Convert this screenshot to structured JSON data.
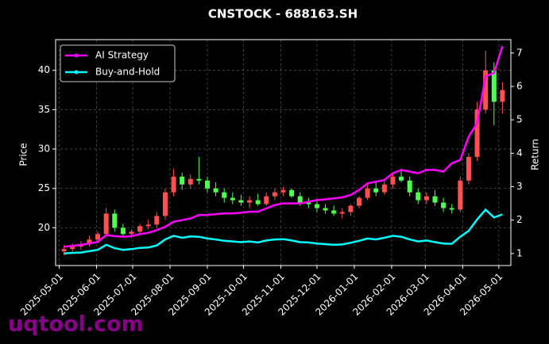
{
  "chart_data": {
    "type": "candlestick",
    "title": "CNSTOCK - 688163.SH",
    "ylabel": "Price",
    "y2label": "Return",
    "watermark": "uqtool.com",
    "x": [
      "2025-05-05",
      "2025-05-12",
      "2025-05-19",
      "2025-05-26",
      "2025-06-02",
      "2025-06-09",
      "2025-06-16",
      "2025-06-23",
      "2025-06-30",
      "2025-07-07",
      "2025-07-14",
      "2025-07-21",
      "2025-07-28",
      "2025-08-04",
      "2025-08-11",
      "2025-08-18",
      "2025-08-25",
      "2025-09-01",
      "2025-09-08",
      "2025-09-15",
      "2025-09-22",
      "2025-09-29",
      "2025-10-06",
      "2025-10-13",
      "2025-10-20",
      "2025-10-27",
      "2025-11-03",
      "2025-11-10",
      "2025-11-17",
      "2025-11-24",
      "2025-12-01",
      "2025-12-08",
      "2025-12-15",
      "2025-12-22",
      "2025-12-29",
      "2026-01-05",
      "2026-01-12",
      "2026-01-19",
      "2026-01-26",
      "2026-02-02",
      "2026-02-09",
      "2026-02-16",
      "2026-02-23",
      "2026-03-02",
      "2026-03-09",
      "2026-03-16",
      "2026-03-23",
      "2026-03-30",
      "2026-04-06",
      "2026-04-13",
      "2026-04-20",
      "2026-04-27",
      "2026-05-04"
    ],
    "open": [
      17.0,
      17.3,
      17.6,
      17.9,
      18.5,
      19.2,
      21.8,
      20.0,
      19.2,
      19.5,
      20.2,
      20.4,
      21.5,
      24.5,
      26.5,
      25.5,
      26.2,
      26.0,
      25.0,
      24.5,
      23.8,
      23.5,
      23.2,
      23.5,
      23.0,
      24.0,
      24.5,
      24.8,
      24.0,
      23.2,
      23.0,
      22.5,
      22.2,
      21.8,
      22.0,
      22.8,
      23.8,
      25.0,
      24.5,
      25.5,
      26.5,
      26.0,
      24.5,
      23.5,
      24.0,
      23.2,
      22.5,
      22.3,
      26.0,
      29.0,
      35.0,
      40.0,
      36.0
    ],
    "high": [
      17.8,
      18.0,
      18.3,
      19.0,
      19.5,
      22.5,
      22.3,
      20.5,
      19.8,
      20.5,
      21.0,
      22.0,
      25.0,
      27.5,
      27.0,
      26.8,
      29.0,
      26.5,
      25.8,
      25.0,
      24.5,
      24.2,
      24.0,
      24.3,
      24.5,
      25.0,
      25.2,
      25.0,
      24.5,
      23.8,
      23.5,
      23.0,
      22.8,
      22.5,
      23.0,
      24.0,
      25.5,
      25.8,
      26.0,
      27.0,
      27.5,
      26.5,
      25.0,
      24.5,
      24.8,
      23.8,
      23.0,
      26.5,
      29.5,
      36.0,
      42.5,
      41.0,
      38.5
    ],
    "low": [
      16.5,
      17.0,
      17.2,
      17.6,
      18.0,
      19.0,
      19.5,
      18.8,
      18.7,
      19.2,
      19.8,
      20.0,
      21.0,
      24.0,
      24.8,
      25.0,
      25.5,
      24.5,
      24.0,
      23.2,
      23.0,
      22.8,
      22.5,
      22.8,
      22.8,
      23.5,
      24.0,
      23.8,
      22.8,
      22.5,
      22.0,
      21.8,
      21.5,
      21.2,
      21.5,
      22.5,
      23.5,
      24.0,
      24.2,
      25.0,
      25.8,
      24.0,
      23.0,
      23.0,
      22.8,
      22.0,
      21.8,
      22.0,
      25.5,
      28.5,
      34.5,
      33.0,
      34.5
    ],
    "close": [
      17.3,
      17.6,
      17.9,
      18.5,
      19.2,
      21.8,
      20.0,
      19.2,
      19.5,
      20.2,
      20.4,
      21.5,
      24.5,
      26.5,
      25.5,
      26.2,
      26.0,
      25.0,
      24.5,
      23.8,
      23.5,
      23.2,
      23.5,
      23.0,
      24.0,
      24.5,
      24.8,
      24.0,
      23.2,
      23.0,
      22.5,
      22.2,
      21.8,
      22.0,
      22.8,
      23.8,
      25.0,
      24.5,
      25.5,
      26.5,
      26.0,
      24.5,
      23.5,
      24.0,
      23.2,
      22.5,
      22.3,
      26.0,
      29.0,
      35.0,
      40.0,
      36.0,
      37.5
    ],
    "up_color": "#ff5050",
    "down_color": "#50ff50",
    "series": [
      {
        "name": "AI Strategy",
        "color": "#ff00ff",
        "axis": "y2",
        "values": [
          1.2,
          1.23,
          1.26,
          1.3,
          1.35,
          1.55,
          1.52,
          1.5,
          1.52,
          1.58,
          1.62,
          1.7,
          1.8,
          1.95,
          2.0,
          2.05,
          2.15,
          2.15,
          2.18,
          2.2,
          2.2,
          2.22,
          2.25,
          2.25,
          2.35,
          2.45,
          2.5,
          2.5,
          2.5,
          2.55,
          2.6,
          2.62,
          2.65,
          2.68,
          2.75,
          2.9,
          3.1,
          3.15,
          3.2,
          3.4,
          3.5,
          3.45,
          3.4,
          3.5,
          3.5,
          3.45,
          3.7,
          3.8,
          4.5,
          4.9,
          6.3,
          6.4,
          7.2
        ]
      },
      {
        "name": "Buy-and-Hold",
        "color": "#00ffff",
        "axis": "y2",
        "values": [
          1.0,
          1.02,
          1.03,
          1.07,
          1.11,
          1.26,
          1.16,
          1.11,
          1.13,
          1.17,
          1.18,
          1.24,
          1.42,
          1.53,
          1.47,
          1.51,
          1.5,
          1.45,
          1.42,
          1.38,
          1.36,
          1.34,
          1.36,
          1.33,
          1.39,
          1.42,
          1.43,
          1.39,
          1.34,
          1.33,
          1.3,
          1.28,
          1.26,
          1.27,
          1.32,
          1.38,
          1.45,
          1.42,
          1.47,
          1.53,
          1.5,
          1.42,
          1.36,
          1.39,
          1.34,
          1.3,
          1.29,
          1.5,
          1.68,
          2.02,
          2.31,
          2.08,
          2.17
        ]
      }
    ],
    "xlim": [
      "2025-04-28",
      "2026-05-11"
    ],
    "xticks": [
      "2025-05-01",
      "2025-06-01",
      "2025-07-01",
      "2025-08-01",
      "2025-09-01",
      "2025-10-01",
      "2025-11-01",
      "2025-12-01",
      "2026-01-01",
      "2026-02-01",
      "2026-03-01",
      "2026-04-01",
      "2026-05-01"
    ],
    "ylim": [
      15.2,
      43.9
    ],
    "yticks": [
      20,
      25,
      30,
      35,
      40
    ],
    "y2lim": [
      0.64,
      7.4
    ],
    "y2ticks": [
      1,
      2,
      3,
      4,
      5,
      6,
      7
    ],
    "grid": true,
    "legend": "upper left"
  }
}
